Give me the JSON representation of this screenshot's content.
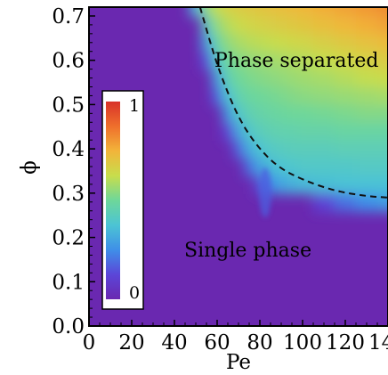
{
  "chart_data": {
    "type": "heatmap",
    "title": "",
    "xlabel": "Pe",
    "ylabel": "ϕ",
    "xlim": [
      0,
      140
    ],
    "ylim": [
      0,
      0.72
    ],
    "x_ticks": [
      "0",
      "20",
      "40",
      "60",
      "80",
      "100",
      "120",
      "140"
    ],
    "y_ticks": [
      "0.0",
      "0.1",
      "0.2",
      "0.3",
      "0.4",
      "0.5",
      "0.6",
      "0.7"
    ],
    "colorbar": {
      "min": 0,
      "max": 1,
      "min_label": "0",
      "max_label": "1",
      "placement": "inside-left"
    },
    "colors": {
      "background": "#6a28b0",
      "scale": [
        "#6a28b0",
        "#5b46d8",
        "#3f8fe8",
        "#4cc4d4",
        "#6ed79a",
        "#c8dd4c",
        "#f2b43a",
        "#ef6f2c",
        "#d8322a"
      ]
    },
    "regions": [
      {
        "label": "Phase separated",
        "position": "upper-right"
      },
      {
        "label": "Single phase",
        "position": "lower-middle"
      }
    ],
    "boundary": {
      "style": "dashed",
      "points": [
        [
          52,
          0.72
        ],
        [
          58,
          0.62
        ],
        [
          63,
          0.55
        ],
        [
          70,
          0.47
        ],
        [
          78,
          0.41
        ],
        [
          88,
          0.36
        ],
        [
          100,
          0.33
        ],
        [
          115,
          0.305
        ],
        [
          130,
          0.293
        ],
        [
          140,
          0.29
        ]
      ]
    },
    "field": {
      "x": [
        50,
        55,
        60,
        65,
        70,
        75,
        80,
        85,
        90,
        95,
        100,
        110,
        120,
        130,
        140
      ],
      "y": [
        0.72,
        0.68,
        0.64,
        0.6,
        0.56,
        0.52,
        0.48,
        0.44,
        0.4,
        0.36,
        0.32,
        0.28
      ],
      "values": [
        [
          0.35,
          0.55,
          0.62,
          0.66,
          0.68,
          0.69,
          0.7,
          0.71,
          0.72,
          0.73,
          0.74,
          0.76,
          0.78,
          0.8,
          0.82
        ],
        [
          0.0,
          0.42,
          0.55,
          0.6,
          0.63,
          0.65,
          0.66,
          0.67,
          0.68,
          0.69,
          0.7,
          0.72,
          0.74,
          0.76,
          0.78
        ],
        [
          0.0,
          0.3,
          0.48,
          0.55,
          0.58,
          0.6,
          0.61,
          0.62,
          0.63,
          0.64,
          0.65,
          0.67,
          0.69,
          0.71,
          0.73
        ],
        [
          0.0,
          0.15,
          0.4,
          0.5,
          0.53,
          0.55,
          0.56,
          0.57,
          0.58,
          0.59,
          0.6,
          0.62,
          0.64,
          0.66,
          0.68
        ],
        [
          0.0,
          0.0,
          0.3,
          0.45,
          0.5,
          0.52,
          0.53,
          0.54,
          0.55,
          0.56,
          0.57,
          0.58,
          0.6,
          0.62,
          0.63
        ],
        [
          0.0,
          0.0,
          0.18,
          0.38,
          0.46,
          0.49,
          0.5,
          0.51,
          0.52,
          0.53,
          0.54,
          0.55,
          0.56,
          0.57,
          0.58
        ],
        [
          0.0,
          0.0,
          0.0,
          0.28,
          0.4,
          0.45,
          0.47,
          0.48,
          0.49,
          0.5,
          0.5,
          0.51,
          0.52,
          0.53,
          0.53
        ],
        [
          0.0,
          0.0,
          0.0,
          0.12,
          0.3,
          0.4,
          0.43,
          0.45,
          0.46,
          0.46,
          0.47,
          0.47,
          0.48,
          0.48,
          0.48
        ],
        [
          0.0,
          0.0,
          0.0,
          0.0,
          0.18,
          0.32,
          0.38,
          0.41,
          0.42,
          0.43,
          0.43,
          0.43,
          0.44,
          0.44,
          0.44
        ],
        [
          0.0,
          0.0,
          0.0,
          0.0,
          0.0,
          0.2,
          0.3,
          0.35,
          0.38,
          0.39,
          0.4,
          0.4,
          0.4,
          0.41,
          0.41
        ],
        [
          0.0,
          0.0,
          0.0,
          0.0,
          0.0,
          0.0,
          0.15,
          0.25,
          0.3,
          0.33,
          0.35,
          0.36,
          0.37,
          0.37,
          0.37
        ],
        [
          0.0,
          0.0,
          0.0,
          0.0,
          0.0,
          0.0,
          0.0,
          0.0,
          0.0,
          0.0,
          0.0,
          0.12,
          0.2,
          0.25,
          0.28
        ]
      ]
    }
  }
}
